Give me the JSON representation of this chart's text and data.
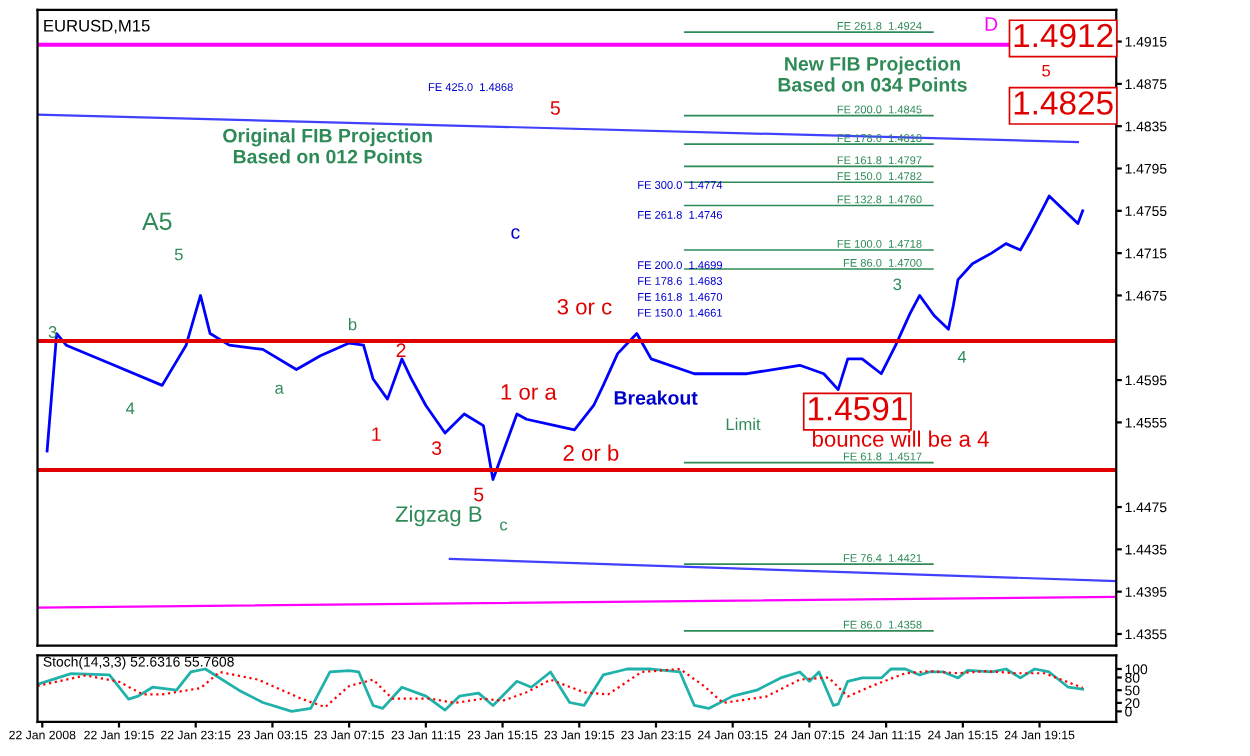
{
  "chart_data": [
    {
      "type": "line",
      "title": "EURUSD,M15",
      "xlim": [
        "2008-01-22T15:00",
        "2008-01-24T23:15"
      ],
      "ylim": [
        1.4344,
        1.4945
      ],
      "yticks": [
        1.4915,
        1.4875,
        1.4835,
        1.4795,
        1.4755,
        1.4715,
        1.4675,
        1.4595,
        1.4555,
        1.4475,
        1.4435,
        1.4395,
        1.4355
      ],
      "tick_labels": "y",
      "series": [
        {
          "color": "#0000ff",
          "x": [
            "2008-01-22T15:30",
            "2008-01-22T16:00",
            "2008-01-22T16:30",
            "2008-01-22T19:00",
            "2008-01-22T21:30",
            "2008-01-22T22:45",
            "2008-01-22T23:30",
            "2008-01-23T00:00",
            "2008-01-23T01:00",
            "2008-01-23T02:45",
            "2008-01-23T04:30",
            "2008-01-23T05:45",
            "2008-01-23T07:15",
            "2008-01-23T08:00",
            "2008-01-23T08:30",
            "2008-01-23T09:15",
            "2008-01-23T10:00",
            "2008-01-23T10:30",
            "2008-01-23T11:15",
            "2008-01-23T12:15",
            "2008-01-23T13:15",
            "2008-01-23T14:15",
            "2008-01-23T14:45",
            "2008-01-23T16:00",
            "2008-01-23T16:30",
            "2008-01-23T18:00",
            "2008-01-23T19:00",
            "2008-01-23T20:00",
            "2008-01-23T20:30",
            "2008-01-23T21:15",
            "2008-01-23T22:15",
            "2008-01-23T23:00",
            "2008-01-24T01:15",
            "2008-01-24T04:00",
            "2008-01-24T06:45",
            "2008-01-24T08:00",
            "2008-01-24T08:45",
            "2008-01-24T09:15",
            "2008-01-24T10:00",
            "2008-01-24T11:00",
            "2008-01-24T11:45",
            "2008-01-24T12:30",
            "2008-01-24T13:00",
            "2008-01-24T13:45",
            "2008-01-24T14:30",
            "2008-01-24T14:45",
            "2008-01-24T15:00",
            "2008-01-24T15:45",
            "2008-01-24T16:45",
            "2008-01-24T17:30",
            "2008-01-24T18:15",
            "2008-01-24T18:45",
            "2008-01-24T19:30",
            "2008-01-24T19:45",
            "2008-01-24T20:30",
            "2008-01-24T21:15",
            "2008-01-24T21:30"
          ],
          "values": [
            1.4528,
            1.4639,
            1.4628,
            1.4609,
            1.459,
            1.4628,
            1.4675,
            1.4639,
            1.4628,
            1.4624,
            1.4605,
            1.4618,
            1.463,
            1.4628,
            1.4596,
            1.4577,
            1.4615,
            1.4596,
            1.4571,
            1.4545,
            1.4563,
            1.4552,
            1.4501,
            1.4563,
            1.4558,
            1.4552,
            1.4548,
            1.4571,
            1.459,
            1.462,
            1.4639,
            1.4615,
            1.4601,
            1.4601,
            1.4609,
            1.4601,
            1.4586,
            1.4615,
            1.4615,
            1.4601,
            1.4628,
            1.4658,
            1.4675,
            1.4656,
            1.4643,
            1.4665,
            1.469,
            1.4705,
            1.4715,
            1.4724,
            1.4718,
            1.4734,
            1.476,
            1.4769,
            1.4756,
            1.4743,
            1.4755
          ]
        },
        {
          "color": "#4040ff",
          "x": [
            "2008-01-23T12:30",
            "2008-01-24T23:15"
          ],
          "values": [
            1.4426,
            1.4405
          ]
        },
        {
          "color": "#4040ff",
          "x": [
            "2008-01-22T15:00",
            "2008-01-24T21:15"
          ],
          "values": [
            1.4846,
            1.482
          ]
        },
        {
          "color": "#ff00ff",
          "x": [
            "2008-01-22T15:00",
            "2008-01-24T23:15"
          ],
          "values": [
            1.438,
            1.439
          ]
        }
      ],
      "ref_lines": [
        {
          "axis": "y",
          "value": 1.4632,
          "color": "#e00000"
        },
        {
          "axis": "y",
          "value": 1.451,
          "color": "#e00000"
        },
        {
          "axis": "y",
          "value": 1.4912,
          "color": "#ff00ff"
        },
        {
          "axis": "y",
          "value": 1.4924,
          "label": "FE 261.8  1.4924",
          "color": "#2e8b57"
        },
        {
          "axis": "y",
          "value": 1.4845,
          "label": "FE 200.0  1.4845",
          "color": "#2e8b57"
        },
        {
          "axis": "y",
          "value": 1.4818,
          "label": "FE 178.6  1.4818",
          "color": "#2e8b57"
        },
        {
          "axis": "y",
          "value": 1.4797,
          "label": "FE 161.8  1.4797",
          "color": "#2e8b57"
        },
        {
          "axis": "y",
          "value": 1.4782,
          "label": "FE 150.0  1.4782",
          "color": "#2e8b57"
        },
        {
          "axis": "y",
          "value": 1.476,
          "label": "FE 132.8  1.4760",
          "color": "#2e8b57"
        },
        {
          "axis": "y",
          "value": 1.4718,
          "label": "FE 100.0  1.4718",
          "color": "#2e8b57"
        },
        {
          "axis": "y",
          "value": 1.47,
          "label": "FE 86.0  1.4700",
          "color": "#2e8b57"
        },
        {
          "axis": "y",
          "value": 1.4517,
          "label": "FE 61.8  1.4517",
          "color": "#2e8b57"
        },
        {
          "axis": "y",
          "value": 1.4421,
          "label": "FE 76.4  1.4421",
          "color": "#2e8b57"
        },
        {
          "axis": "y",
          "value": 1.4358,
          "label": "FE 86.0  1.4358",
          "color": "#2e8b57"
        }
      ],
      "annotations": [
        "FE 425.0  1.4868",
        "FE 300.0  1.4774",
        "FE 261.8  1.4746",
        "FE 200.0  1.4699",
        "FE 178.6  1.4683",
        "FE 161.8  1.4670",
        "FE 150.0  1.4661",
        "3",
        "A5",
        "5",
        "4",
        "a",
        "b",
        "Zigzag B",
        "c",
        "Limit",
        "4",
        "3",
        "New FIB Projection\nBased on 034 Points",
        "Original FIB Projection\nBased on 012 Points",
        "1",
        "2",
        "3",
        "5",
        "1 or a",
        "2 or b",
        "3 or c",
        "1.4591",
        "bounce will be a 4",
        "5",
        "5",
        "1.4912",
        "1.4825",
        "c",
        "Breakout",
        "D"
      ]
    },
    {
      "type": "line",
      "title": "Stoch(14,3,3) 52.6316 55.7608",
      "xlim": [
        "2008-01-22T15:00",
        "2008-01-24T23:15"
      ],
      "ylim": [
        -25,
        132
      ],
      "yticks": [
        0,
        20,
        50,
        80,
        100
      ],
      "xticks": [
        {
          "value": "2008-01-22T15:15",
          "label": "22 Jan 2008"
        },
        {
          "value": "2008-01-22T19:15",
          "label": "22 Jan 19:15"
        },
        {
          "value": "2008-01-22T23:15",
          "label": "22 Jan 23:15"
        },
        {
          "value": "2008-01-23T03:15",
          "label": "23 Jan 03:15"
        },
        {
          "value": "2008-01-23T07:15",
          "label": "23 Jan 07:15"
        },
        {
          "value": "2008-01-23T11:15",
          "label": "23 Jan 11:15"
        },
        {
          "value": "2008-01-23T15:15",
          "label": "23 Jan 15:15"
        },
        {
          "value": "2008-01-23T19:15",
          "label": "23 Jan 19:15"
        },
        {
          "value": "2008-01-23T23:15",
          "label": "23 Jan 23:15"
        },
        {
          "value": "2008-01-24T03:15",
          "label": "24 Jan 03:15"
        },
        {
          "value": "2008-01-24T07:15",
          "label": "24 Jan 07:15"
        },
        {
          "value": "2008-01-24T11:15",
          "label": "24 Jan 11:15"
        },
        {
          "value": "2008-01-24T15:15",
          "label": "24 Jan 15:15"
        },
        {
          "value": "2008-01-24T19:15",
          "label": "24 Jan 19:15"
        }
      ],
      "series": [
        {
          "color": "#20b2aa",
          "line_style": "solid",
          "x": [
            "2008-01-22T15:00",
            "2008-01-22T16:45",
            "2008-01-22T18:45",
            "2008-01-22T19:45",
            "2008-01-22T20:15",
            "2008-01-22T21:00",
            "2008-01-22T22:15",
            "2008-01-22T23:00",
            "2008-01-22T23:45",
            "2008-01-23T00:15",
            "2008-01-23T01:30",
            "2008-01-23T02:45",
            "2008-01-23T04:15",
            "2008-01-23T05:15",
            "2008-01-23T06:15",
            "2008-01-23T07:15",
            "2008-01-23T07:45",
            "2008-01-23T08:30",
            "2008-01-23T09:00",
            "2008-01-23T10:00",
            "2008-01-23T11:15",
            "2008-01-23T12:15",
            "2008-01-23T13:00",
            "2008-01-23T14:00",
            "2008-01-23T14:45",
            "2008-01-23T16:00",
            "2008-01-23T16:45",
            "2008-01-23T17:45",
            "2008-01-23T18:45",
            "2008-01-23T19:30",
            "2008-01-23T20:30",
            "2008-01-23T21:45",
            "2008-01-23T23:00",
            "2008-01-24T00:30",
            "2008-01-24T01:15",
            "2008-01-24T02:00",
            "2008-01-24T03:15",
            "2008-01-24T04:30",
            "2008-01-24T05:45",
            "2008-01-24T06:45",
            "2008-01-24T07:15",
            "2008-01-24T07:45",
            "2008-01-24T08:30",
            "2008-01-24T08:45",
            "2008-01-24T09:15",
            "2008-01-24T10:00",
            "2008-01-24T11:00",
            "2008-01-24T11:30",
            "2008-01-24T12:15",
            "2008-01-24T13:00",
            "2008-01-24T13:30",
            "2008-01-24T14:15",
            "2008-01-24T15:00",
            "2008-01-24T15:30",
            "2008-01-24T16:45",
            "2008-01-24T17:30",
            "2008-01-24T18:15",
            "2008-01-24T19:00",
            "2008-01-24T19:45",
            "2008-01-24T20:45",
            "2008-01-24T21:30"
          ],
          "values": [
            64,
            89,
            86,
            29,
            36,
            57,
            50,
            93,
            100,
            86,
            50,
            21,
            0,
            7,
            93,
            96,
            93,
            14,
            7,
            57,
            36,
            3,
            36,
            43,
            14,
            71,
            57,
            93,
            21,
            14,
            86,
            100,
            100,
            93,
            14,
            7,
            36,
            50,
            79,
            93,
            71,
            93,
            14,
            17,
            71,
            79,
            79,
            100,
            100,
            86,
            93,
            93,
            79,
            97,
            93,
            100,
            79,
            100,
            93,
            57,
            52.6316
          ]
        },
        {
          "color": "#ff0000",
          "line_style": "dotted",
          "x": [
            "2008-01-22T15:00",
            "2008-01-22T17:30",
            "2008-01-22T19:15",
            "2008-01-22T20:30",
            "2008-01-22T21:30",
            "2008-01-22T23:30",
            "2008-01-23T00:30",
            "2008-01-23T02:30",
            "2008-01-23T04:45",
            "2008-01-23T06:00",
            "2008-01-23T07:15",
            "2008-01-23T08:30",
            "2008-01-23T09:30",
            "2008-01-23T11:30",
            "2008-01-23T12:45",
            "2008-01-23T14:15",
            "2008-01-23T15:15",
            "2008-01-23T16:30",
            "2008-01-23T17:45",
            "2008-01-23T19:30",
            "2008-01-23T20:45",
            "2008-01-23T22:30",
            "2008-01-24T00:30",
            "2008-01-24T01:45",
            "2008-01-24T02:45",
            "2008-01-24T05:00",
            "2008-01-24T06:45",
            "2008-01-24T08:15",
            "2008-01-24T09:15",
            "2008-01-24T10:30",
            "2008-01-24T12:15",
            "2008-01-24T13:30",
            "2008-01-24T15:00",
            "2008-01-24T16:30",
            "2008-01-24T18:00",
            "2008-01-24T19:30",
            "2008-01-24T21:30"
          ],
          "values": [
            60,
            85,
            70,
            40,
            40,
            55,
            93,
            75,
            30,
            10,
            60,
            75,
            30,
            30,
            20,
            30,
            25,
            45,
            75,
            45,
            40,
            93,
            100,
            60,
            20,
            35,
            75,
            80,
            35,
            60,
            90,
            95,
            90,
            95,
            90,
            90,
            55.7608
          ]
        }
      ]
    }
  ]
}
